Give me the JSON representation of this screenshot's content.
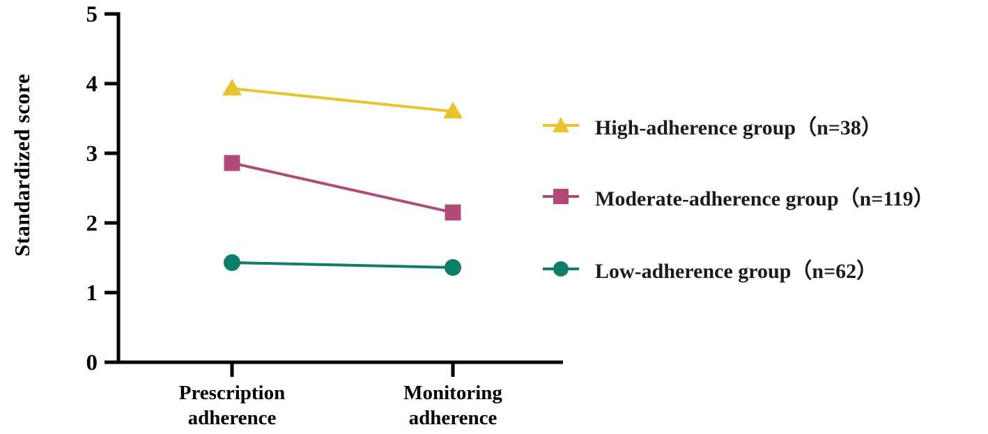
{
  "chart_data": {
    "type": "line",
    "title": "",
    "xlabel": "",
    "ylabel": "Standardized score",
    "ylim": [
      0,
      5
    ],
    "yticks": [
      "0",
      "1",
      "2",
      "3",
      "4",
      "5"
    ],
    "categories": [
      "Prescription\nadherence",
      "Monitoring\nadherence"
    ],
    "series": [
      {
        "name": "High-adherence group（n=38）",
        "marker": "triangle",
        "color": "#E9C32B",
        "values": [
          3.93,
          3.6
        ]
      },
      {
        "name": "Moderate-adherence group（n=119）",
        "marker": "square",
        "color": "#B04B77",
        "values": [
          2.86,
          2.15
        ]
      },
      {
        "name": "Low-adherence group（n=62）",
        "marker": "circle",
        "color": "#0E7D6A",
        "values": [
          1.43,
          1.36
        ]
      }
    ],
    "legend_position": "right",
    "grid": false,
    "axis_color": "#000000",
    "text_color": "#1b1b1b"
  }
}
